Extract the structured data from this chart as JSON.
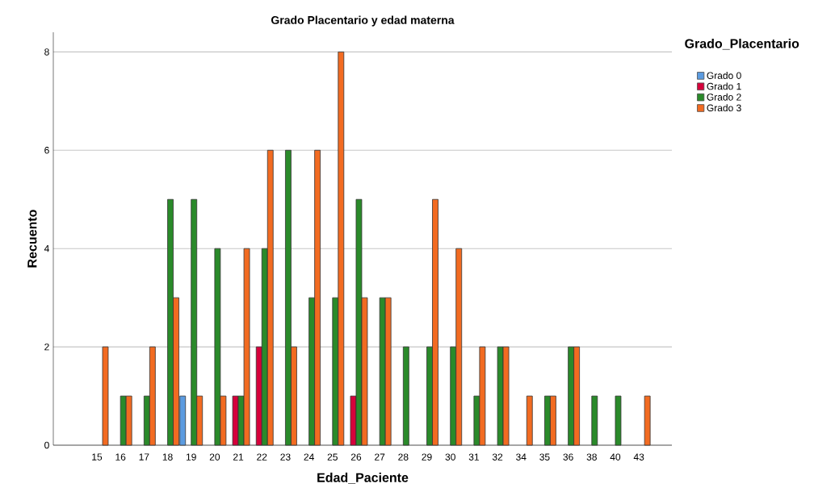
{
  "chart_data": {
    "type": "bar",
    "title": "Grado Placentario y edad materna",
    "xlabel": "Edad_Paciente",
    "ylabel": "Recuento",
    "legend_title": "Grado_Placentario",
    "categories": [
      "15",
      "16",
      "17",
      "18",
      "19",
      "20",
      "21",
      "22",
      "23",
      "24",
      "25",
      "26",
      "27",
      "28",
      "29",
      "30",
      "31",
      "32",
      "34",
      "35",
      "36",
      "38",
      "40",
      "43"
    ],
    "series": [
      {
        "name": "Grado 0",
        "color": "#5b9be0",
        "values": [
          null,
          null,
          null,
          null,
          1,
          null,
          null,
          null,
          null,
          null,
          null,
          null,
          null,
          null,
          null,
          null,
          null,
          null,
          null,
          null,
          null,
          null,
          null,
          null
        ]
      },
      {
        "name": "Grado 1",
        "color": "#d6003b",
        "values": [
          null,
          null,
          null,
          null,
          null,
          null,
          1,
          2,
          null,
          null,
          null,
          1,
          null,
          null,
          null,
          null,
          null,
          null,
          null,
          null,
          null,
          null,
          null,
          null
        ]
      },
      {
        "name": "Grado 2",
        "color": "#2a8a2a",
        "values": [
          null,
          1,
          1,
          5,
          5,
          4,
          1,
          4,
          6,
          3,
          3,
          5,
          3,
          2,
          2,
          2,
          1,
          2,
          null,
          1,
          2,
          1,
          1,
          null
        ]
      },
      {
        "name": "Grado 3",
        "color": "#f26b21",
        "values": [
          2,
          1,
          2,
          3,
          1,
          1,
          4,
          6,
          2,
          6,
          8,
          3,
          3,
          null,
          5,
          4,
          2,
          2,
          1,
          1,
          2,
          null,
          null,
          1
        ]
      }
    ],
    "ylim": [
      0,
      8.4
    ],
    "yticks": [
      0,
      2,
      4,
      6,
      8
    ],
    "grid": "y",
    "legend": "top right"
  }
}
